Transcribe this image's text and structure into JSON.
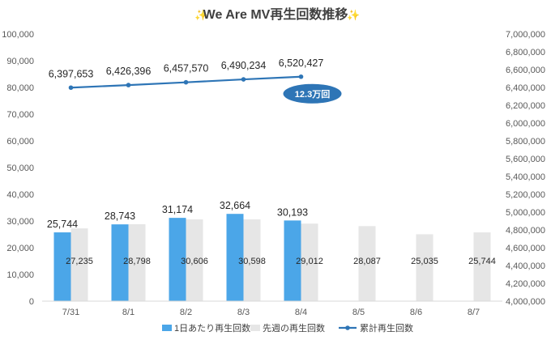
{
  "chart_data": {
    "type": "bar",
    "title": "We Are MV再生回数推移",
    "title_emoji": "sparkle-emoji",
    "categories": [
      "7/31",
      "8/1",
      "8/2",
      "8/3",
      "8/4",
      "8/5",
      "8/6",
      "8/7"
    ],
    "series": [
      {
        "name": "1日あたり再生回数",
        "kind": "bar",
        "axis": "left",
        "color": "#4BA6E8",
        "values": [
          25744,
          28743,
          31174,
          32664,
          30193,
          null,
          null,
          null
        ],
        "labels": [
          "25,744",
          "28,743",
          "31,174",
          "32,664",
          "30,193",
          "",
          "",
          ""
        ]
      },
      {
        "name": "先週の再生回数",
        "kind": "bar",
        "axis": "left",
        "color": "#E6E6E6",
        "values": [
          27235,
          28798,
          30606,
          30598,
          29012,
          28087,
          25035,
          25744
        ],
        "labels": [
          "27,235",
          "28,798",
          "30,606",
          "30,598",
          "29,012",
          "28,087",
          "25,035",
          "25,744"
        ]
      },
      {
        "name": "累計再生回数",
        "kind": "line",
        "axis": "right",
        "color": "#2E75B6",
        "values": [
          6397653,
          6426396,
          6457570,
          6490234,
          6520427,
          null,
          null,
          null
        ],
        "labels": [
          "6,397,653",
          "6,426,396",
          "6,457,570",
          "6,490,234",
          "6,520,427",
          "",
          "",
          ""
        ]
      }
    ],
    "left_axis": {
      "min": 0,
      "max": 100000,
      "step": 10000,
      "ticks": [
        "0",
        "10,000",
        "20,000",
        "30,000",
        "40,000",
        "50,000",
        "60,000",
        "70,000",
        "80,000",
        "90,000",
        "100,000"
      ]
    },
    "right_axis": {
      "min": 4000000,
      "max": 7000000,
      "step": 200000,
      "ticks": [
        "4,000,000",
        "4,200,000",
        "4,400,000",
        "4,600,000",
        "4,800,000",
        "5,000,000",
        "5,200,000",
        "5,400,000",
        "5,600,000",
        "5,800,000",
        "6,000,000",
        "6,200,000",
        "6,400,000",
        "6,600,000",
        "6,800,000",
        "7,000,000"
      ]
    },
    "annotation": {
      "text": "12.3万回",
      "color": "#2E75B6"
    },
    "grid": false,
    "legend_position": "bottom"
  }
}
